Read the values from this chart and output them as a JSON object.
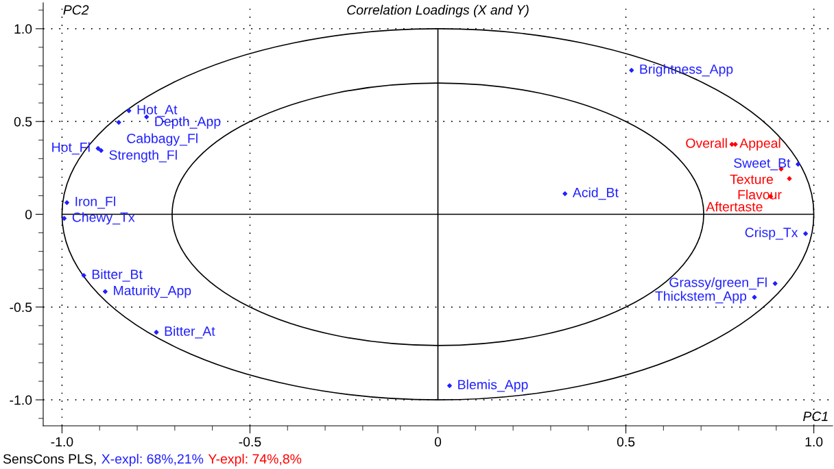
{
  "chart_data": {
    "type": "scatter",
    "title": "Correlation Loadings (X and Y)",
    "xlabel": "PC1",
    "ylabel": "PC2",
    "annotations": [
      "SensCons PLS,",
      "X-expl: 68%,21%",
      "Y-expl: 74%,8%"
    ],
    "xlim": [
      -1.05,
      1.05
    ],
    "ylim": [
      -1.14,
      1.14
    ],
    "xticks": [
      {
        "value": -1,
        "label": "-1.0"
      },
      {
        "value": -0.5,
        "label": "-0.5"
      },
      0,
      {
        "value": 0.5,
        "label": "0.5"
      },
      {
        "value": 1,
        "label": "1.0"
      }
    ],
    "yticks": [
      {
        "value": -1,
        "label": "-1.0"
      },
      {
        "value": -0.5,
        "label": "-0.5"
      },
      0,
      {
        "value": 0.5,
        "label": "0.5"
      },
      {
        "value": 1,
        "label": "1.0"
      }
    ],
    "grid": true,
    "marker": "diamond",
    "series": [
      {
        "color": "#2020ff",
        "x": [
          -0.822,
          -0.775,
          -0.849,
          -0.904,
          -0.896,
          -0.987,
          -0.994,
          -0.942,
          -0.885,
          -0.749,
          0.031,
          0.338,
          0.515,
          0.958,
          0.978,
          0.897,
          0.842
        ],
        "values": [
          0.558,
          0.525,
          0.495,
          0.355,
          0.344,
          0.063,
          -0.022,
          -0.33,
          -0.417,
          -0.636,
          -0.924,
          0.111,
          0.776,
          0.27,
          -0.104,
          -0.373,
          -0.447
        ],
        "value_labels": [
          "Hot_At",
          "Depth_App",
          "Cabbagy_Fl",
          "Hot_Fl",
          "Strength_Fl",
          "Iron_Fl",
          "Chewy_Tx",
          "Bitter_Bt",
          "Maturity_App",
          "Bitter_At",
          "Blemis_App",
          "Acid_Bt",
          "Brightness_App",
          "Sweet_Bt",
          "Crisp_Tx",
          "Grassy/green_Fl",
          "Thickstem_App"
        ]
      },
      {
        "color": "#ff0000",
        "x": [
          0.782,
          0.791,
          0.913,
          0.935,
          0.885
        ],
        "values": [
          0.377,
          0.377,
          0.244,
          0.192,
          0.096
        ],
        "value_labels": [
          "Appeal",
          "Overall",
          "Texture",
          "Flavour",
          "Aftertaste"
        ]
      }
    ]
  }
}
